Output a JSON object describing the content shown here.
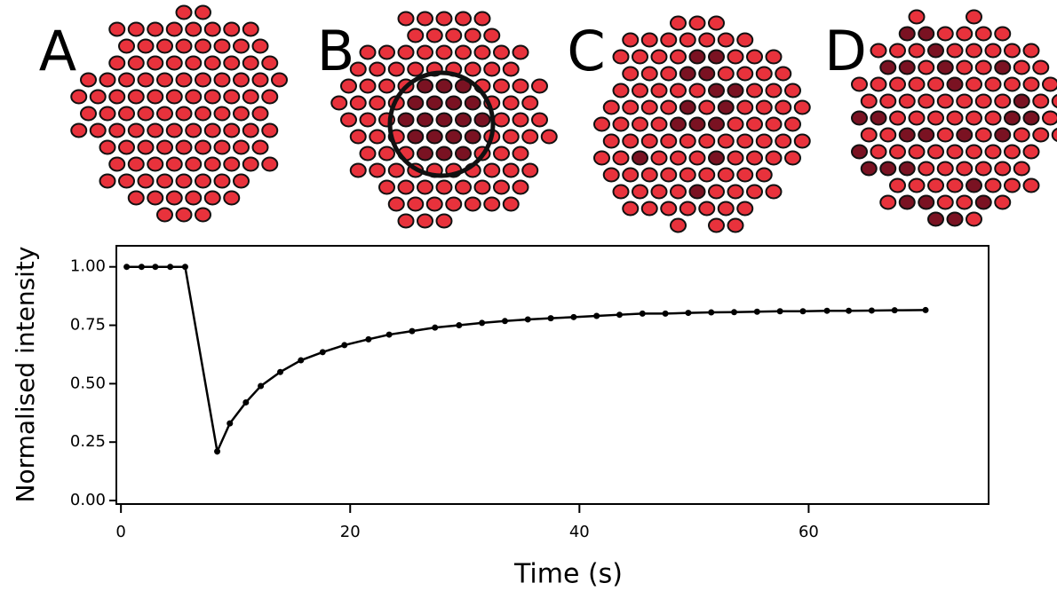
{
  "panels": [
    "A",
    "B",
    "C",
    "D"
  ],
  "chart_data": {
    "type": "line",
    "xlabel": "Time (s)",
    "ylabel": "Normalised intensity",
    "x": [
      0.5,
      1.8,
      3.0,
      4.3,
      5.6,
      8.4,
      9.5,
      10.9,
      12.2,
      13.9,
      15.7,
      17.6,
      19.5,
      21.6,
      23.4,
      25.4,
      27.4,
      29.5,
      31.5,
      33.5,
      35.5,
      37.5,
      39.5,
      41.5,
      43.5,
      45.5,
      47.5,
      49.5,
      51.5,
      53.5,
      55.5,
      57.5,
      59.5,
      61.6,
      63.5,
      65.5,
      67.5,
      70.2
    ],
    "series": [
      {
        "color": "#000000",
        "values": [
          1.0,
          1.0,
          1.0,
          1.0,
          1.0,
          0.21,
          0.33,
          0.42,
          0.49,
          0.55,
          0.6,
          0.635,
          0.665,
          0.69,
          0.71,
          0.725,
          0.74,
          0.75,
          0.76,
          0.768,
          0.775,
          0.78,
          0.785,
          0.79,
          0.795,
          0.8,
          0.8,
          0.803,
          0.805,
          0.806,
          0.808,
          0.81,
          0.81,
          0.812,
          0.812,
          0.813,
          0.814,
          0.815
        ]
      }
    ],
    "xlim": [
      -0.4,
      75.7
    ],
    "ylim": [
      -0.015,
      1.09
    ],
    "xticks": [
      0,
      20,
      40,
      60
    ],
    "yticks": [
      {
        "value": 0,
        "label": "0.00"
      },
      {
        "value": 0.25,
        "label": "0.25"
      },
      {
        "value": 0.5,
        "label": "0.50"
      },
      {
        "value": 0.75,
        "label": "0.75"
      },
      {
        "value": 1,
        "label": "1.00"
      }
    ]
  }
}
